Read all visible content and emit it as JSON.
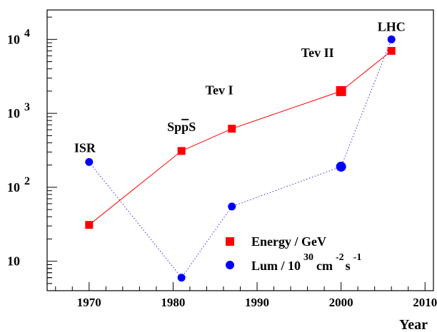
{
  "chart_data": {
    "type": "scatter",
    "title": "",
    "xlabel": "Year",
    "ylabel": "",
    "x_ticks": [
      "1970",
      "1980",
      "1990",
      "2000",
      "2010"
    ],
    "x_range": [
      1965,
      2011
    ],
    "y_scale": "log",
    "y_range": [
      4,
      25000
    ],
    "y_ticks": [
      {
        "value": 10,
        "base": "10",
        "exp": ""
      },
      {
        "value": 100,
        "base": "10",
        "exp": "2"
      },
      {
        "value": 1000,
        "base": "10",
        "exp": "3"
      },
      {
        "value": 10000,
        "base": "10",
        "exp": "4"
      }
    ],
    "series": [
      {
        "name": "Energy / GeV",
        "color": "#ff0000",
        "marker": "square",
        "line_style": "solid",
        "points": [
          {
            "x": 1970,
            "y": 31
          },
          {
            "x": 1981,
            "y": 310
          },
          {
            "x": 1987,
            "y": 620
          },
          {
            "x": 2000,
            "y": 2000
          },
          {
            "x": 2006,
            "y": 7000
          }
        ]
      },
      {
        "name": "Lum / 10",
        "name_exponent": "30",
        "units": {
          "cm": "cm",
          "cm_exp": "-2",
          "s": "s",
          "s_exp": "-1"
        },
        "color": "#0000ff",
        "marker": "circle",
        "line_style": "dotted",
        "points": [
          {
            "x": 1970,
            "y": 220
          },
          {
            "x": 1981,
            "y": 6
          },
          {
            "x": 1987,
            "y": 55
          },
          {
            "x": 2000,
            "y": 190
          },
          {
            "x": 2006,
            "y": 10000
          }
        ]
      }
    ],
    "annotations": [
      {
        "text": "ISR",
        "x": 1970
      },
      {
        "text": "Sp",
        "overline": "p",
        "tail": "S",
        "x": 1981
      },
      {
        "text": "Tev I",
        "x": 1987
      },
      {
        "text": "Tev II",
        "x": 2000
      },
      {
        "text": "LHC",
        "x": 2006
      }
    ],
    "legend_position": "bottom-right",
    "grid": false
  }
}
